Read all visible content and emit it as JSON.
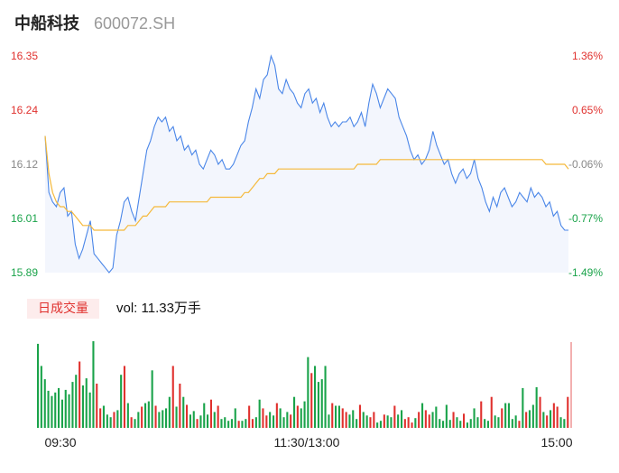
{
  "header": {
    "name": "中船科技",
    "code": "600072.SH"
  },
  "colors": {
    "up": "#e0312e",
    "down": "#1aa34a",
    "price_line": "#4a86e8",
    "avg_line": "#f5b93b",
    "axis_text_neutral": "#888888"
  },
  "volume": {
    "badge": "日成交量",
    "text": "vol: 11.33万手"
  },
  "chart_data": [
    {
      "type": "line",
      "subtype": "intraday-price",
      "y_ticks_left": [
        "16.35",
        "16.24",
        "16.12",
        "16.01",
        "15.89"
      ],
      "y_ticks_right": [
        "1.36%",
        "0.65%",
        "-0.06%",
        "-0.77%",
        "-1.49%"
      ],
      "ylim": [
        15.89,
        16.35
      ],
      "x_ticks": [
        "09:30",
        "11:30/13:00",
        "15:00"
      ],
      "series": [
        {
          "role": "price",
          "values": [
            16.18,
            16.06,
            16.04,
            16.03,
            16.06,
            16.07,
            16.01,
            16.02,
            15.95,
            15.92,
            15.94,
            15.97,
            16.0,
            15.93,
            15.92,
            15.91,
            15.9,
            15.89,
            15.9,
            15.97,
            16.0,
            16.04,
            16.05,
            16.02,
            16.0,
            16.05,
            16.1,
            16.15,
            16.17,
            16.2,
            16.22,
            16.21,
            16.22,
            16.19,
            16.2,
            16.17,
            16.18,
            16.15,
            16.16,
            16.14,
            16.15,
            16.12,
            16.11,
            16.13,
            16.15,
            16.14,
            16.12,
            16.13,
            16.11,
            16.11,
            16.12,
            16.14,
            16.16,
            16.17,
            16.21,
            16.24,
            16.28,
            16.26,
            16.3,
            16.31,
            16.35,
            16.33,
            16.28,
            16.27,
            16.3,
            16.28,
            16.27,
            16.25,
            16.24,
            16.27,
            16.28,
            16.25,
            16.26,
            16.23,
            16.25,
            16.22,
            16.2,
            16.21,
            16.2,
            16.21,
            16.21,
            16.22,
            16.2,
            16.21,
            16.23,
            16.2,
            16.25,
            16.29,
            16.27,
            16.24,
            16.26,
            16.28,
            16.27,
            16.26,
            16.22,
            16.2,
            16.18,
            16.15,
            16.13,
            16.14,
            16.12,
            16.13,
            16.15,
            16.19,
            16.16,
            16.14,
            16.12,
            16.13,
            16.1,
            16.08,
            16.1,
            16.11,
            16.09,
            16.1,
            16.13,
            16.09,
            16.07,
            16.04,
            16.02,
            16.05,
            16.03,
            16.06,
            16.07,
            16.05,
            16.03,
            16.04,
            16.06,
            16.05,
            16.04,
            16.07,
            16.05,
            16.06,
            16.05,
            16.03,
            16.04,
            16.01,
            16.02,
            15.99,
            15.98,
            15.98
          ],
          "color": "#4a86e8"
        },
        {
          "role": "average",
          "values": [
            16.18,
            16.1,
            16.06,
            16.04,
            16.03,
            16.03,
            16.02,
            16.02,
            16.01,
            16.0,
            15.99,
            15.99,
            15.99,
            15.98,
            15.98,
            15.98,
            15.98,
            15.98,
            15.98,
            15.98,
            15.98,
            15.98,
            15.99,
            15.99,
            15.99,
            16.0,
            16.01,
            16.01,
            16.02,
            16.03,
            16.03,
            16.03,
            16.03,
            16.04,
            16.04,
            16.04,
            16.04,
            16.04,
            16.04,
            16.04,
            16.04,
            16.04,
            16.04,
            16.04,
            16.05,
            16.05,
            16.05,
            16.05,
            16.05,
            16.05,
            16.05,
            16.05,
            16.05,
            16.06,
            16.06,
            16.07,
            16.08,
            16.09,
            16.09,
            16.1,
            16.1,
            16.1,
            16.11,
            16.11,
            16.11,
            16.11,
            16.11,
            16.11,
            16.11,
            16.11,
            16.11,
            16.11,
            16.11,
            16.11,
            16.11,
            16.11,
            16.11,
            16.11,
            16.11,
            16.11,
            16.11,
            16.11,
            16.11,
            16.12,
            16.12,
            16.12,
            16.12,
            16.12,
            16.12,
            16.13,
            16.13,
            16.13,
            16.13,
            16.13,
            16.13,
            16.13,
            16.13,
            16.13,
            16.13,
            16.13,
            16.13,
            16.13,
            16.13,
            16.13,
            16.13,
            16.13,
            16.13,
            16.13,
            16.13,
            16.13,
            16.13,
            16.13,
            16.13,
            16.13,
            16.13,
            16.13,
            16.13,
            16.13,
            16.13,
            16.13,
            16.13,
            16.13,
            16.13,
            16.13,
            16.13,
            16.13,
            16.13,
            16.13,
            16.13,
            16.13,
            16.13,
            16.13,
            16.13,
            16.12,
            16.12,
            16.12,
            16.12,
            16.12,
            16.12,
            16.11
          ],
          "color": "#f5b93b"
        }
      ]
    },
    {
      "type": "bar",
      "subtype": "volume",
      "values": [
        95,
        70,
        55,
        42,
        36,
        40,
        45,
        32,
        43,
        38,
        52,
        60,
        75,
        48,
        56,
        40,
        98,
        50,
        22,
        25,
        15,
        12,
        18,
        20,
        60,
        70,
        28,
        12,
        10,
        18,
        24,
        28,
        30,
        65,
        25,
        18,
        20,
        22,
        35,
        70,
        24,
        50,
        35,
        26,
        15,
        19,
        10,
        14,
        28,
        15,
        32,
        18,
        25,
        10,
        12,
        8,
        10,
        22,
        8,
        8,
        10,
        25,
        10,
        12,
        32,
        22,
        14,
        18,
        14,
        28,
        22,
        12,
        18,
        15,
        35,
        25,
        22,
        30,
        80,
        62,
        70,
        52,
        55,
        70,
        15,
        28,
        25,
        25,
        22,
        18,
        15,
        20,
        10,
        26,
        18,
        14,
        12,
        18,
        6,
        8,
        15,
        14,
        12,
        25,
        15,
        20,
        10,
        12,
        6,
        11,
        18,
        28,
        20,
        15,
        18,
        24,
        10,
        8,
        26,
        9,
        18,
        12,
        8,
        16,
        6,
        10,
        22,
        12,
        30,
        10,
        8,
        35,
        14,
        12,
        22,
        28,
        28,
        10,
        14,
        8,
        45,
        18,
        20,
        26,
        46,
        35,
        18,
        14,
        20,
        28,
        24,
        12,
        10,
        35
      ],
      "colors": [
        "d",
        "d",
        "d",
        "d",
        "d",
        "d",
        "d",
        "d",
        "d",
        "d",
        "d",
        "d",
        "u",
        "d",
        "d",
        "d",
        "d",
        "u",
        "u",
        "d",
        "d",
        "d",
        "u",
        "d",
        "d",
        "u",
        "d",
        "u",
        "d",
        "d",
        "u",
        "d",
        "d",
        "d",
        "u",
        "d",
        "d",
        "d",
        "d",
        "u",
        "d",
        "u",
        "d",
        "u",
        "d",
        "d",
        "u",
        "d",
        "d",
        "d",
        "u",
        "d",
        "u",
        "d",
        "d",
        "d",
        "d",
        "d",
        "u",
        "d",
        "d",
        "u",
        "u",
        "d",
        "d",
        "u",
        "u",
        "d",
        "d",
        "u",
        "d",
        "d",
        "d",
        "u",
        "d",
        "u",
        "d",
        "d",
        "d",
        "u",
        "d",
        "d",
        "d",
        "d",
        "d",
        "u",
        "d",
        "d",
        "u",
        "u",
        "d",
        "d",
        "d",
        "u",
        "d",
        "d",
        "u",
        "u",
        "d",
        "d",
        "u",
        "d",
        "d",
        "u",
        "d",
        "d",
        "u",
        "u",
        "u",
        "d",
        "u",
        "d",
        "u",
        "u",
        "d",
        "d",
        "d",
        "d",
        "d",
        "d",
        "u",
        "d",
        "d",
        "u",
        "d",
        "d",
        "d",
        "d",
        "u",
        "d",
        "d",
        "u",
        "d",
        "d",
        "u",
        "d",
        "d",
        "d",
        "d",
        "u",
        "d",
        "u",
        "d",
        "d",
        "d",
        "u",
        "d",
        "u",
        "d",
        "u",
        "u",
        "d",
        "d",
        "u"
      ]
    }
  ]
}
